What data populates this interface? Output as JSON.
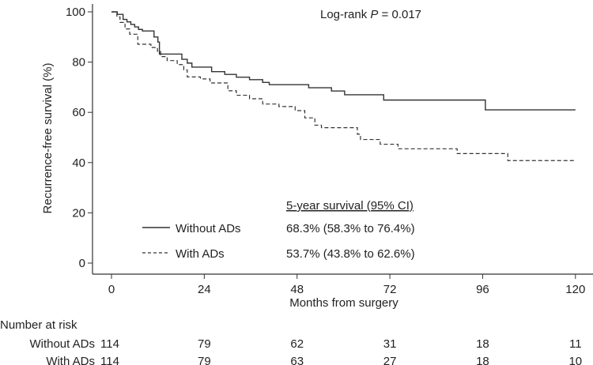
{
  "chart_data": {
    "type": "line",
    "subtype": "kaplan-meier",
    "xlabel": "Months from surgery",
    "ylabel": "Recurrence-free survival (%)",
    "xlim": [
      0,
      120
    ],
    "ylim": [
      0,
      100
    ],
    "xticks": [
      "0",
      "24",
      "48",
      "72",
      "96",
      "120"
    ],
    "yticks": [
      "0",
      "20",
      "40",
      "60",
      "80",
      "100"
    ],
    "annotation": "Log-rank P = 0.017",
    "annotation_prefix": "Log-rank ",
    "annotation_p": "P",
    "annotation_suffix": " = 0.017",
    "legend_header": "5-year survival (95% CI)",
    "series": [
      {
        "name": "Without ADs",
        "style": "solid",
        "five_year": "68.3% (58.3% to 76.4%)",
        "x": [
          0,
          1.5,
          3,
          4,
          5,
          6,
          7,
          8,
          11,
          12,
          12.4,
          18.2,
          19.6,
          20.8,
          25.9,
          29.3,
          32.3,
          35.7,
          39.1,
          40.8,
          51,
          56.9,
          60.3,
          70.4,
          96.7,
          120
        ],
        "y": [
          100,
          99,
          97,
          96,
          95,
          94,
          93,
          92.4,
          90,
          88,
          83.2,
          81.1,
          79.6,
          78,
          76.2,
          75.1,
          74,
          73,
          71.9,
          71,
          69.8,
          68.5,
          67,
          64.9,
          61,
          61
        ]
      },
      {
        "name": "With ADs",
        "style": "dashed",
        "five_year": "53.7% (43.8% to 62.6%)",
        "x": [
          0,
          1.4,
          2.2,
          3.5,
          4.7,
          6.8,
          10.2,
          11.9,
          12.7,
          14.4,
          17,
          18.7,
          19.6,
          23,
          25.5,
          30.1,
          32.3,
          35.7,
          39.1,
          43.3,
          47.5,
          50,
          52.6,
          54.3,
          63.6,
          64.4,
          69.5,
          74.1,
          89.4,
          102.5,
          120
        ],
        "y": [
          100,
          98,
          95.8,
          93.2,
          91.1,
          87.1,
          85.8,
          84.3,
          82.2,
          80.6,
          79,
          76.9,
          74.1,
          73.3,
          71.7,
          68.6,
          66.8,
          65.4,
          63.3,
          62.3,
          60.7,
          57.8,
          54.9,
          53.9,
          51.3,
          49.2,
          47.3,
          45.5,
          43.6,
          40.8,
          40.8
        ]
      }
    ],
    "risk_table": {
      "title": "Number at risk",
      "rows": [
        {
          "label": "Without ADs",
          "values": [
            "114",
            "79",
            "62",
            "31",
            "18",
            "11"
          ]
        },
        {
          "label": "With ADs",
          "values": [
            "114",
            "79",
            "63",
            "27",
            "18",
            "10"
          ]
        }
      ]
    }
  }
}
